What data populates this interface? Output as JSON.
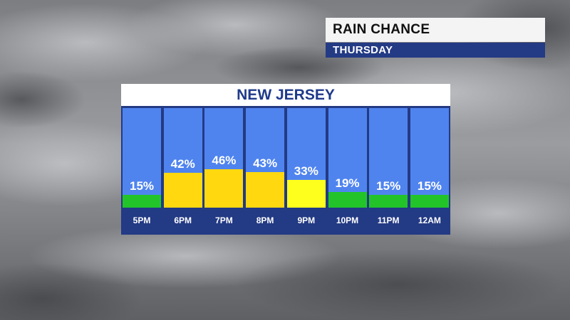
{
  "title": "RAIN CHANCE",
  "day": "THURSDAY",
  "region": "NEW JERSEY",
  "colors": {
    "panel_blue": "#4f84ef",
    "navy": "#233a84",
    "green": "#22c42a",
    "yellow_orange": "#ffd80f",
    "yellow": "#ffff1e"
  },
  "chart_data": {
    "type": "bar",
    "title": "RAIN CHANCE",
    "subtitle": "THURSDAY",
    "categories": [
      "5PM",
      "6PM",
      "7PM",
      "8PM",
      "9PM",
      "10PM",
      "11PM",
      "12AM"
    ],
    "values": [
      15,
      42,
      46,
      43,
      33,
      19,
      15,
      15
    ],
    "value_labels": [
      "15%",
      "42%",
      "46%",
      "43%",
      "33%",
      "19%",
      "15%",
      "15%"
    ],
    "bar_colors": [
      "#22c42a",
      "#ffd80f",
      "#ffd80f",
      "#ffd80f",
      "#ffff1e",
      "#22c42a",
      "#22c42a",
      "#22c42a"
    ],
    "unit": "%"
  }
}
